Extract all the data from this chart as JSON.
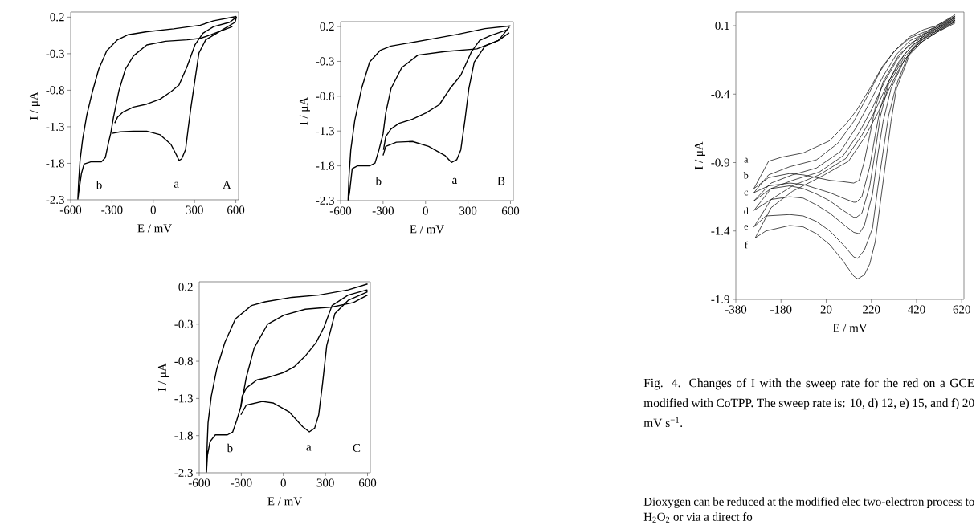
{
  "chart_data": [
    {
      "type": "line",
      "xlabel": "E / mV",
      "ylabel": "I / μA",
      "xlim": [
        -600,
        620
      ],
      "ylim": [
        -2.3,
        0.27
      ],
      "xticks": [
        -600,
        -300,
        0,
        300,
        600
      ],
      "yticks": [
        -2.3,
        -1.8,
        -1.3,
        -0.8,
        -0.3,
        0.2
      ],
      "series": [
        {
          "color": "#000000",
          "x": [
            604,
            439,
            342,
            148,
            -47,
            -182,
            -260,
            -338,
            -396,
            -445,
            -483,
            -513,
            -532,
            -542,
            -548,
            -542,
            -522,
            -503,
            -454,
            -377,
            -348,
            -328,
            -309,
            -289,
            -250,
            -202,
            -144,
            -47,
            89,
            245,
            342,
            420,
            575
          ],
          "values": [
            0.21,
            0.15,
            0.09,
            0.04,
            0.0,
            -0.04,
            -0.11,
            -0.26,
            -0.51,
            -0.84,
            -1.14,
            -1.47,
            -1.76,
            -2.05,
            -2.29,
            -2.2,
            -1.94,
            -1.81,
            -1.78,
            -1.78,
            -1.72,
            -1.54,
            -1.39,
            -1.17,
            -0.81,
            -0.51,
            -0.33,
            -0.18,
            -0.13,
            -0.11,
            -0.09,
            -0.04,
            0.07
          ]
        },
        {
          "color": "#000000",
          "x": [
            -299,
            -241,
            -144,
            -47,
            51,
            128,
            167,
            187,
            206,
            235,
            254,
            274,
            303,
            332,
            381,
            478,
            594,
            604,
            555,
            439,
            361,
            303,
            245,
            187,
            128,
            51,
            -47,
            -144,
            -221,
            -260,
            -280
          ],
          "values": [
            -1.39,
            -1.37,
            -1.36,
            -1.36,
            -1.41,
            -1.54,
            -1.68,
            -1.76,
            -1.74,
            -1.61,
            -1.32,
            -1.03,
            -0.66,
            -0.29,
            -0.11,
            0.0,
            0.13,
            0.2,
            0.13,
            0.07,
            -0.02,
            -0.18,
            -0.48,
            -0.73,
            -0.82,
            -0.92,
            -0.99,
            -1.03,
            -1.1,
            -1.17,
            -1.25
          ]
        }
      ],
      "annotations": [
        "b",
        "a",
        "A"
      ]
    },
    {
      "type": "line",
      "xlabel": "E / mV",
      "ylabel": "I / μA",
      "xlim": [
        -600,
        620
      ],
      "ylim": [
        -2.3,
        0.27
      ],
      "xticks": [
        -600,
        -300,
        0,
        300,
        600
      ],
      "yticks": [
        -2.3,
        -1.8,
        -1.3,
        -0.8,
        -0.3,
        0.2
      ],
      "series": [
        {
          "color": "#000000",
          "x": [
            600,
            420,
            230,
            41,
            -130,
            -244,
            -319,
            -395,
            -452,
            -500,
            -528,
            -541,
            -547,
            -537,
            -518,
            -481,
            -395,
            -357,
            -329,
            -300,
            -281,
            -244,
            -168,
            -54,
            136,
            363,
            515,
            591
          ],
          "values": [
            0.21,
            0.17,
            0.09,
            0.02,
            -0.04,
            -0.08,
            -0.14,
            -0.31,
            -0.69,
            -1.15,
            -1.57,
            -1.96,
            -2.29,
            -2.19,
            -1.84,
            -1.8,
            -1.8,
            -1.76,
            -1.57,
            -1.34,
            -1.04,
            -0.69,
            -0.39,
            -0.21,
            -0.16,
            -0.12,
            0.0,
            0.11
          ]
        },
        {
          "color": "#000000",
          "x": [
            -300,
            -281,
            -206,
            -92,
            22,
            136,
            183,
            221,
            249,
            278,
            306,
            344,
            420,
            515,
            591,
            572,
            458,
            382,
            325,
            249,
            173,
            98,
            3,
            -92,
            -187,
            -244,
            -281,
            -297
          ],
          "values": [
            -1.65,
            -1.52,
            -1.46,
            -1.45,
            -1.52,
            -1.65,
            -1.75,
            -1.71,
            -1.57,
            -1.15,
            -0.69,
            -0.31,
            -0.08,
            0.0,
            0.19,
            0.15,
            0.07,
            0.0,
            -0.16,
            -0.5,
            -0.69,
            -0.92,
            -1.04,
            -1.13,
            -1.19,
            -1.27,
            -1.38,
            -1.57
          ]
        }
      ],
      "annotations": [
        "b",
        "a",
        "B"
      ]
    },
    {
      "type": "line",
      "xlabel": "E / mV",
      "ylabel": "I / μA",
      "xlim": [
        -600,
        620
      ],
      "ylim": [
        -2.3,
        0.27
      ],
      "xticks": [
        -600,
        -300,
        0,
        300,
        600
      ],
      "yticks": [
        -2.3,
        -1.8,
        -1.3,
        -0.8,
        -0.3,
        0.2
      ],
      "series": [
        {
          "color": "#000000",
          "x": [
            600,
            462,
            252,
            61,
            -131,
            -227,
            -342,
            -418,
            -476,
            -514,
            -537,
            -543,
            -548,
            -541,
            -523,
            -485,
            -399,
            -361,
            -332,
            -303,
            -265,
            -208,
            -112,
            4,
            156,
            347,
            500,
            600
          ],
          "values": [
            0.24,
            0.16,
            0.09,
            0.06,
            0.0,
            -0.05,
            -0.23,
            -0.55,
            -0.91,
            -1.27,
            -1.63,
            -1.91,
            -2.29,
            -2.06,
            -1.88,
            -1.79,
            -1.79,
            -1.75,
            -1.59,
            -1.41,
            -1.02,
            -0.62,
            -0.3,
            -0.18,
            -0.1,
            -0.07,
            -0.01,
            0.09
          ]
        },
        {
          "color": "#000000",
          "x": [
            -303,
            -265,
            -150,
            -74,
            41,
            137,
            185,
            223,
            252,
            280,
            309,
            367,
            462,
            596,
            596,
            462,
            347,
            290,
            233,
            156,
            80,
            4,
            -112,
            -188,
            -265,
            -294,
            -303
          ],
          "values": [
            -1.52,
            -1.39,
            -1.34,
            -1.36,
            -1.48,
            -1.68,
            -1.75,
            -1.7,
            -1.52,
            -1.09,
            -0.59,
            -0.16,
            0.02,
            0.13,
            0.16,
            0.09,
            -0.05,
            -0.34,
            -0.55,
            -0.73,
            -0.87,
            -0.95,
            -1.02,
            -1.05,
            -1.16,
            -1.27,
            -1.41
          ]
        }
      ],
      "annotations": [
        "b",
        "a",
        "C"
      ]
    },
    {
      "type": "line",
      "xlabel": "E / mV",
      "ylabel": "I / μA",
      "xlim": [
        -380,
        630
      ],
      "ylim": [
        -1.9,
        0.2
      ],
      "xticks": [
        -380,
        -180,
        20,
        220,
        420,
        620
      ],
      "yticks": [
        -1.9,
        -1.4,
        -0.9,
        -0.4,
        0.1
      ],
      "series": [
        {
          "color": "#000000",
          "x": [
            591,
            508,
            449,
            343,
            272,
            237,
            213,
            189,
            166,
            142,
            95,
            36,
            -23,
            -82,
            -141,
            -235,
            -300,
            -235,
            -176,
            -82,
            36,
            107,
            154,
            213,
            272,
            331,
            390,
            449,
            508,
            591
          ],
          "values": [
            0.18,
            0.1,
            0.04,
            -0.11,
            -0.31,
            -0.5,
            -0.7,
            -0.89,
            -1.03,
            -1.05,
            -1.04,
            -1.03,
            -1.01,
            -0.99,
            -0.98,
            -1.01,
            -1.09,
            -0.89,
            -0.86,
            -0.83,
            -0.74,
            -0.62,
            -0.52,
            -0.36,
            -0.19,
            -0.07,
            0.02,
            0.07,
            0.1,
            0.17
          ]
        },
        {
          "color": "#000000",
          "x": [
            591,
            508,
            449,
            366,
            296,
            260,
            237,
            213,
            178,
            154,
            142,
            95,
            36,
            -23,
            -82,
            -141,
            -235,
            -300,
            -235,
            -141,
            -23,
            71,
            142,
            201,
            260,
            319,
            390,
            508,
            591
          ],
          "values": [
            0.17,
            0.09,
            0.03,
            -0.11,
            -0.31,
            -0.5,
            -0.7,
            -0.93,
            -1.15,
            -1.19,
            -1.19,
            -1.16,
            -1.12,
            -1.09,
            -1.06,
            -1.05,
            -1.07,
            -1.12,
            -0.99,
            -0.93,
            -0.88,
            -0.76,
            -0.6,
            -0.42,
            -0.23,
            -0.09,
            0.01,
            0.09,
            0.16
          ]
        },
        {
          "color": "#000000",
          "x": [
            591,
            508,
            449,
            366,
            296,
            260,
            237,
            213,
            178,
            154,
            142,
            95,
            36,
            -23,
            -82,
            -141,
            -224,
            -300,
            -224,
            -129,
            -23,
            83,
            154,
            213,
            272,
            331,
            390,
            508,
            591
          ],
          "values": [
            0.16,
            0.08,
            0.02,
            -0.13,
            -0.33,
            -0.56,
            -0.82,
            -1.07,
            -1.27,
            -1.3,
            -1.3,
            -1.25,
            -1.18,
            -1.13,
            -1.09,
            -1.07,
            -1.09,
            -1.18,
            -1.05,
            -0.99,
            -0.94,
            -0.82,
            -0.64,
            -0.46,
            -0.27,
            -0.11,
            -0.01,
            0.08,
            0.15
          ]
        },
        {
          "color": "#000000",
          "x": [
            591,
            508,
            449,
            366,
            307,
            272,
            248,
            225,
            189,
            166,
            142,
            95,
            36,
            -23,
            -82,
            -141,
            -224,
            -300,
            -224,
            -129,
            -11,
            95,
            166,
            225,
            278,
            337,
            390,
            508,
            591
          ],
          "values": [
            0.15,
            0.07,
            0.01,
            -0.15,
            -0.36,
            -0.6,
            -0.85,
            -1.13,
            -1.36,
            -1.42,
            -1.41,
            -1.35,
            -1.27,
            -1.21,
            -1.16,
            -1.15,
            -1.17,
            -1.25,
            -1.09,
            -1.03,
            -0.97,
            -0.85,
            -0.68,
            -0.5,
            -0.31,
            -0.14,
            -0.03,
            0.07,
            0.14
          ]
        },
        {
          "color": "#000000",
          "x": [
            591,
            508,
            449,
            390,
            331,
            296,
            272,
            248,
            225,
            189,
            160,
            142,
            95,
            36,
            -23,
            -82,
            -141,
            -247,
            -300,
            -224,
            -129,
            -11,
            107,
            178,
            237,
            290,
            343,
            402,
            508,
            591
          ],
          "values": [
            0.14,
            0.06,
            0.0,
            -0.09,
            -0.33,
            -0.56,
            -0.82,
            -1.09,
            -1.38,
            -1.54,
            -1.6,
            -1.59,
            -1.5,
            -1.4,
            -1.33,
            -1.29,
            -1.28,
            -1.29,
            -1.37,
            -1.17,
            -1.07,
            -0.99,
            -0.87,
            -0.7,
            -0.52,
            -0.33,
            -0.16,
            -0.04,
            0.06,
            0.13
          ]
        },
        {
          "color": "#000000",
          "x": [
            591,
            508,
            449,
            390,
            331,
            307,
            284,
            260,
            237,
            213,
            189,
            160,
            142,
            95,
            36,
            -23,
            -82,
            -141,
            -247,
            -294,
            -224,
            -129,
            12,
            119,
            189,
            248,
            302,
            355,
            414,
            508,
            591
          ],
          "values": [
            0.13,
            0.05,
            -0.01,
            -0.11,
            -0.36,
            -0.6,
            -0.89,
            -1.19,
            -1.48,
            -1.64,
            -1.72,
            -1.75,
            -1.73,
            -1.62,
            -1.5,
            -1.42,
            -1.37,
            -1.36,
            -1.4,
            -1.45,
            -1.23,
            -1.11,
            -0.99,
            -0.89,
            -0.72,
            -0.54,
            -0.35,
            -0.18,
            -0.05,
            0.05,
            0.12
          ]
        }
      ],
      "annotations": [
        "a",
        "b",
        "c",
        "d",
        "e",
        "f",
        "Fig. 4.   Changes of I with the sweep rate for the red on a GCE modified with CoTPP. The sweep rate is: 10, d) 12, e) 15, and f) 20 mV s$^{−1}$.",
        "Dioxygen can be reduced at the modified elec two-electron process to H$_{2}$O$_{2}$ or via a direct fo"
      ]
    }
  ]
}
